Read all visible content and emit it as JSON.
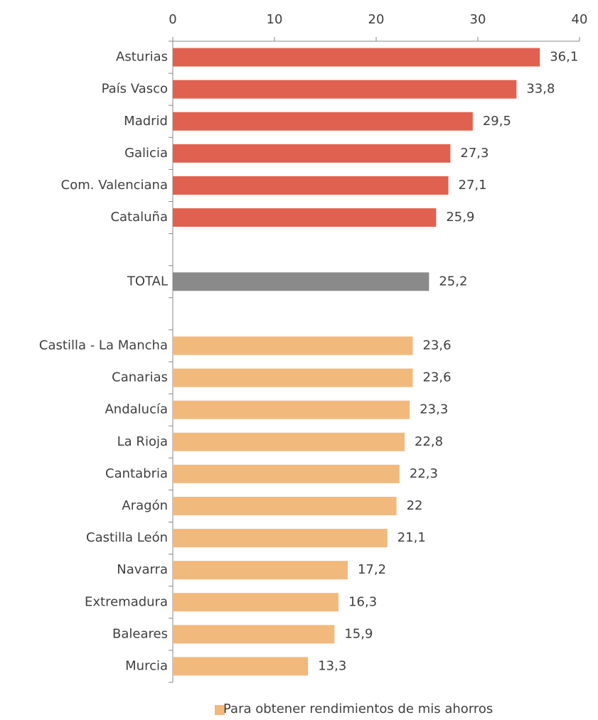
{
  "chart_data": {
    "type": "hbar",
    "categories": [
      "Asturias",
      "País Vasco",
      "Madrid",
      "Galicia",
      "Com. Valenciana",
      "Cataluña",
      null,
      "TOTAL",
      null,
      "Castilla - La Mancha",
      "Canarias",
      "Andalucía",
      "La Rioja",
      "Cantabria",
      "Aragón",
      "Castilla León",
      "Navarra",
      "Extremadura",
      "Baleares",
      "Murcia"
    ],
    "series": [
      {
        "name": "Para obtener rendimientos de mis ahorros",
        "color": "#f2b97c",
        "values": [
          36.1,
          33.8,
          29.5,
          27.3,
          27.1,
          25.9,
          null,
          25.2,
          null,
          23.6,
          23.6,
          23.3,
          22.8,
          22.3,
          22,
          21.1,
          17.2,
          16.3,
          15.9,
          13.3
        ],
        "value_labels": [
          "36,1",
          "33,8",
          "29,5",
          "27,3",
          "27,1",
          "25,9",
          null,
          "25,2",
          null,
          "23,6",
          "23,6",
          "23,3",
          "22,8",
          "22,3",
          "22",
          "21,1",
          "17,2",
          "16,3",
          "15,9",
          "13,3"
        ],
        "colors": [
          "#e06150",
          "#e06150",
          "#e06150",
          "#e06150",
          "#e06150",
          "#e06150",
          null,
          "#8a8a8a",
          null,
          "#f2b97c",
          "#f2b97c",
          "#f2b97c",
          "#f2b97c",
          "#f2b97c",
          "#f2b97c",
          "#f2b97c",
          "#f2b97c",
          "#f2b97c",
          "#f2b97c",
          "#f2b97c"
        ]
      }
    ],
    "xlim": [
      0,
      40
    ],
    "xticks": [
      0,
      10,
      20,
      30,
      40
    ],
    "legend": "bottom"
  }
}
